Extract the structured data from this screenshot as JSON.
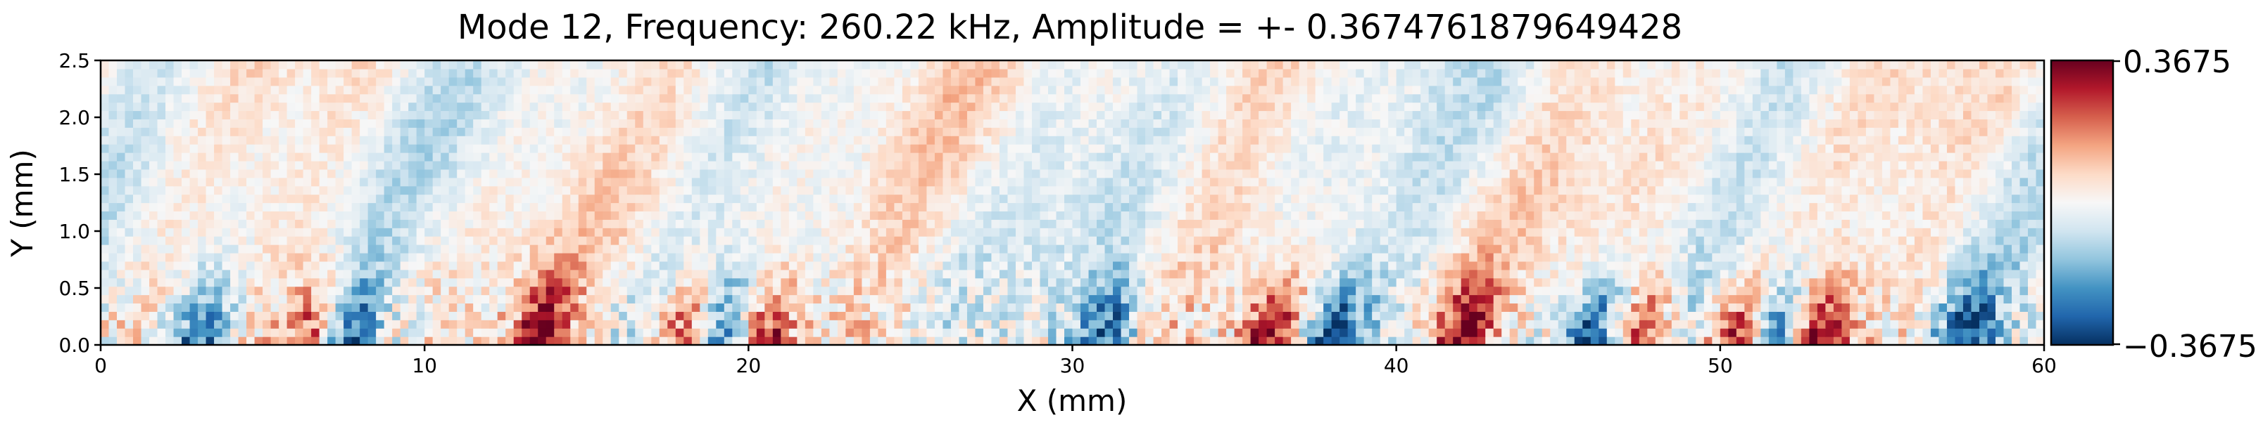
{
  "chart_data": {
    "type": "heatmap",
    "title": "Mode 12, Frequency: 260.22 kHz, Amplitude = +- 0.3674761879649428",
    "xlabel": "X (mm)",
    "ylabel": "Y (mm)",
    "xlim": [
      0,
      60
    ],
    "ylim": [
      0,
      2.5
    ],
    "x_ticks": [
      0,
      10,
      20,
      30,
      40,
      50,
      60
    ],
    "x_tick_labels": [
      "0",
      "10",
      "20",
      "30",
      "40",
      "50",
      "60"
    ],
    "y_ticks": [
      0.0,
      0.5,
      1.0,
      1.5,
      2.0,
      2.5
    ],
    "y_tick_labels": [
      "0.0",
      "0.5",
      "1.0",
      "1.5",
      "2.0",
      "2.5"
    ],
    "colormap": "RdBu_r",
    "colorbar": {
      "min": -0.3675,
      "max": 0.3675,
      "max_label": "0.3675",
      "min_label": "−0.3675",
      "colors": [
        "#053061",
        "#2166ac",
        "#4393c3",
        "#92c5de",
        "#d1e5f0",
        "#f7f7f7",
        "#fddbc7",
        "#f4a582",
        "#d6604d",
        "#b2182b",
        "#67001f"
      ]
    },
    "amplitude": 0.3674761879649428,
    "field_description": {
      "near_wall_band_y": [
        0,
        0.6
      ],
      "strong_positive_x": [
        6.5,
        13.5,
        18,
        20.5,
        36,
        42,
        47.5,
        50.5,
        53
      ],
      "strong_negative_x": [
        3,
        7.5,
        19,
        31,
        38,
        46,
        51.5,
        57.5
      ]
    }
  }
}
